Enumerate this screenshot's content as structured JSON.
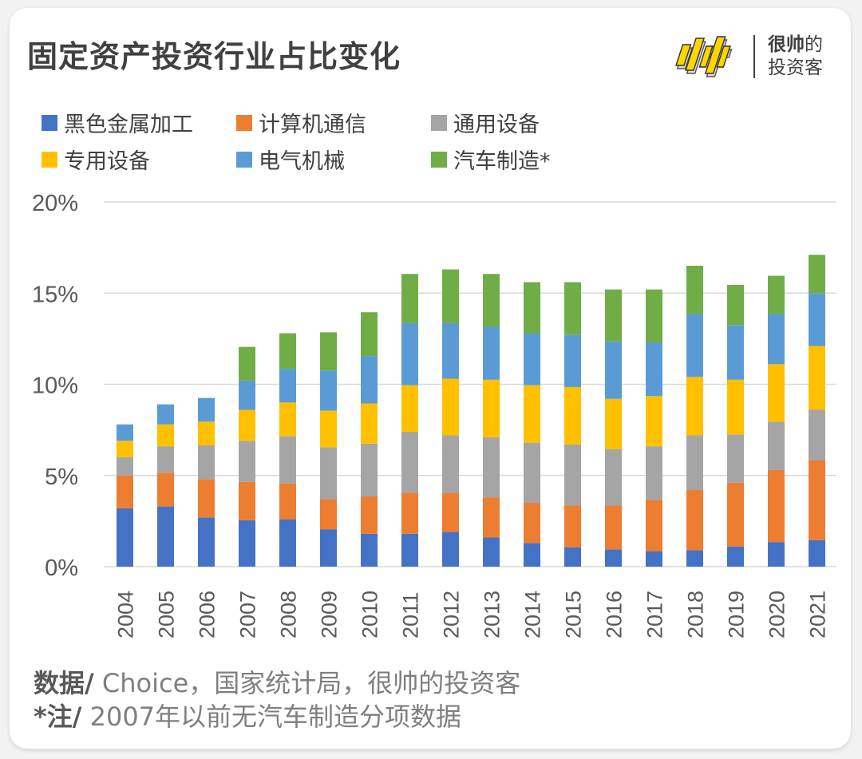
{
  "title": "固定资产投资行业占比变化",
  "brand": {
    "mark": "帅",
    "line1_bold": "很帅",
    "line1_rest": "的",
    "line2": "投资客"
  },
  "colors": {
    "black_metal": "#4472c4",
    "computer": "#ed7d31",
    "general_equipment": "#a5a5a5",
    "special_equipment": "#ffc000",
    "electrical": "#5b9bd5",
    "auto": "#70ad47",
    "grid": "#d9d9d9",
    "text": "#595959"
  },
  "footer": {
    "source_label": "数据/",
    "source_text": " Choice，国家统计局，很帅的投资客",
    "note_label": "*注/",
    "note_text": " 2007年以前无汽车制造分项数据"
  },
  "chart_data": {
    "type": "bar",
    "stacked": true,
    "title": "固定资产投资行业占比变化",
    "xlabel": "",
    "ylabel": "",
    "ylim": [
      0,
      20
    ],
    "yticks": [
      "0%",
      "5%",
      "10%",
      "15%",
      "20%"
    ],
    "ytick_values": [
      0,
      5,
      10,
      15,
      20
    ],
    "grid": true,
    "legend_position": "top-left",
    "categories": [
      "2004",
      "2005",
      "2006",
      "2007",
      "2008",
      "2009",
      "2010",
      "2011",
      "2012",
      "2013",
      "2014",
      "2015",
      "2016",
      "2017",
      "2018",
      "2019",
      "2020",
      "2021"
    ],
    "series": [
      {
        "name": "黑色金属加工",
        "color": "#4472c4",
        "values": [
          3.2,
          3.3,
          2.7,
          2.55,
          2.6,
          2.05,
          1.8,
          1.8,
          1.9,
          1.6,
          1.3,
          1.05,
          0.95,
          0.85,
          0.9,
          1.1,
          1.35,
          1.45
        ]
      },
      {
        "name": "计算机通信",
        "color": "#ed7d31",
        "values": [
          1.8,
          1.85,
          2.1,
          2.1,
          1.95,
          1.65,
          2.05,
          2.25,
          2.15,
          2.2,
          2.2,
          2.3,
          2.4,
          2.8,
          3.3,
          3.5,
          3.95,
          4.4
        ]
      },
      {
        "name": "通用设备",
        "color": "#a5a5a5",
        "values": [
          1.0,
          1.45,
          1.85,
          2.25,
          2.6,
          2.85,
          2.9,
          3.35,
          3.15,
          3.3,
          3.3,
          3.35,
          3.1,
          2.95,
          3.0,
          2.65,
          2.65,
          2.75
        ]
      },
      {
        "name": "专用设备",
        "color": "#ffc000",
        "values": [
          0.9,
          1.2,
          1.3,
          1.7,
          1.85,
          2.0,
          2.2,
          2.55,
          3.1,
          3.15,
          3.15,
          3.15,
          2.75,
          2.75,
          3.2,
          3.0,
          3.15,
          3.5
        ]
      },
      {
        "name": "电气机械",
        "color": "#5b9bd5",
        "values": [
          0.9,
          1.1,
          1.3,
          1.6,
          1.85,
          2.2,
          2.6,
          3.4,
          3.05,
          2.9,
          2.85,
          2.85,
          3.15,
          2.95,
          3.45,
          3.0,
          2.75,
          2.9
        ]
      },
      {
        "name": "汽车制造*",
        "color": "#70ad47",
        "values": [
          0,
          0,
          0,
          1.85,
          1.95,
          2.1,
          2.4,
          2.7,
          2.95,
          2.9,
          2.8,
          2.9,
          2.85,
          2.9,
          2.65,
          2.2,
          2.1,
          2.1
        ]
      }
    ]
  }
}
